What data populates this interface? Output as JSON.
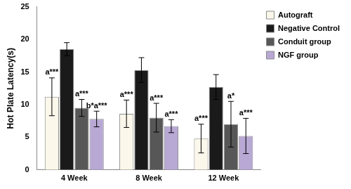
{
  "chart_data": {
    "type": "bar",
    "y_label": "Hot Plate Latency(s)",
    "categories": [
      "4 Week",
      "8 Week",
      "12 Week"
    ],
    "series": [
      {
        "name": "Autograft",
        "color": "#fbf7ea",
        "values": [
          11.2,
          8.6,
          4.8
        ],
        "errors": [
          2.9,
          2.1,
          2.2
        ],
        "annotations": [
          "a***",
          "a***",
          "a***"
        ]
      },
      {
        "name": "Negative Control",
        "color": "#1a1a1a",
        "values": [
          18.5,
          15.3,
          12.7
        ],
        "errors": [
          1.0,
          1.9,
          1.9
        ],
        "annotations": [
          null,
          null,
          null
        ]
      },
      {
        "name": "Conduit group",
        "color": "#575757",
        "values": [
          9.5,
          8.0,
          7.0
        ],
        "errors": [
          1.3,
          2.2,
          3.5
        ],
        "annotations": [
          "a***",
          "a***",
          "a*"
        ]
      },
      {
        "name": "NGF group",
        "color": "#b8a8d4",
        "values": [
          7.8,
          6.7,
          5.2
        ],
        "errors": [
          1.2,
          1.0,
          2.7
        ],
        "annotations": [
          "b*a***",
          "a***",
          "a***"
        ]
      }
    ],
    "ylim": [
      0,
      25
    ],
    "yticks": [
      0,
      5,
      10,
      15,
      20,
      25
    ],
    "grid": false,
    "legend": "right"
  }
}
